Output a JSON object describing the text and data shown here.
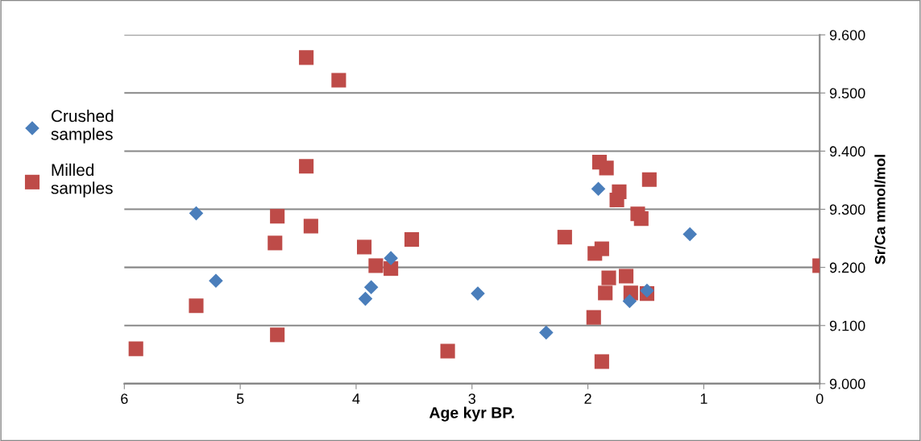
{
  "chart_data": {
    "type": "scatter",
    "xlabel": "Age kyr BP.",
    "ylabel": "Sr/Ca mmol/mol",
    "xlim": [
      6,
      0
    ],
    "xticks": [
      6,
      5,
      4,
      3,
      2,
      1,
      0
    ],
    "ylim": [
      9.0,
      9.6
    ],
    "yticks": [
      {
        "value": 9.0,
        "label": "9.000"
      },
      {
        "value": 9.1,
        "label": "9.100"
      },
      {
        "value": 9.2,
        "label": "9.200"
      },
      {
        "value": 9.3,
        "label": "9.300"
      },
      {
        "value": 9.4,
        "label": "9.400"
      },
      {
        "value": 9.5,
        "label": "9.500"
      },
      {
        "value": 9.6,
        "label": "9.600"
      }
    ],
    "grid": "y",
    "legend": "left",
    "series": [
      {
        "name": "Crushed samples",
        "color": "#4a7ebb",
        "marker": "diamond",
        "x": [
          5.38,
          5.21,
          3.87,
          3.92,
          3.7,
          2.95,
          2.36,
          1.91,
          1.12,
          1.64,
          1.49
        ],
        "values": [
          9.293,
          9.177,
          9.166,
          9.146,
          9.216,
          9.155,
          9.088,
          9.335,
          9.257,
          9.142,
          9.16
        ]
      },
      {
        "name": "Milled samples",
        "color": "#be4b48",
        "marker": "square",
        "x": [
          5.9,
          4.43,
          4.15,
          4.43,
          4.68,
          4.39,
          4.7,
          5.38,
          4.68,
          3.93,
          3.83,
          3.7,
          3.52,
          3.21,
          1.9,
          1.84,
          1.47,
          1.73,
          1.75,
          1.57,
          1.54,
          2.2,
          1.88,
          1.94,
          0.0,
          1.82,
          1.67,
          1.85,
          1.63,
          1.49,
          1.95,
          1.88
        ],
        "values": [
          9.06,
          9.561,
          9.522,
          9.374,
          9.288,
          9.271,
          9.242,
          9.134,
          9.084,
          9.235,
          9.203,
          9.198,
          9.248,
          9.056,
          9.381,
          9.371,
          9.351,
          9.33,
          9.316,
          9.292,
          9.284,
          9.252,
          9.232,
          9.224,
          9.203,
          9.182,
          9.185,
          9.156,
          9.156,
          9.155,
          9.114,
          9.038
        ]
      }
    ]
  }
}
